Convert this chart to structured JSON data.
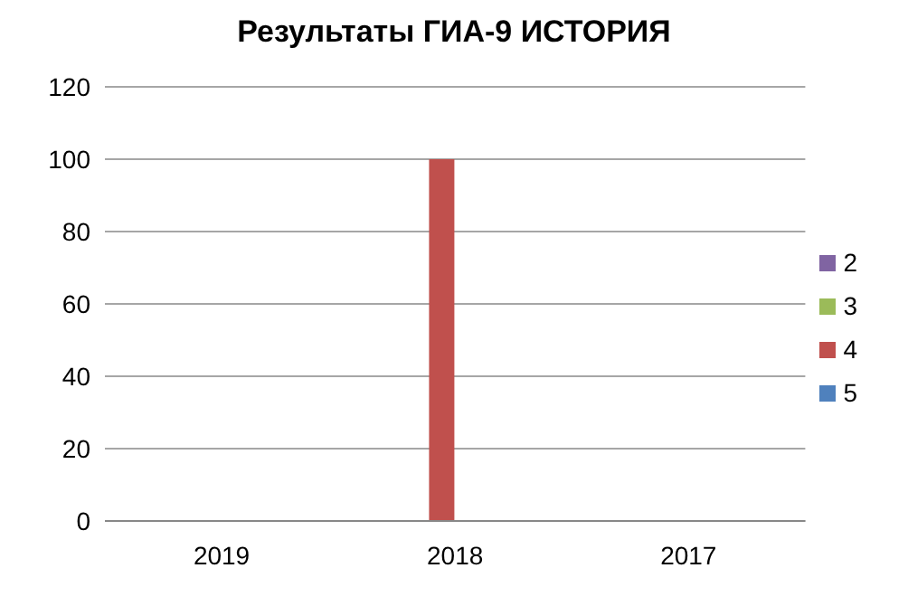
{
  "chart_data": {
    "type": "bar",
    "title": "Результаты ГИА-9  ИСТОРИЯ",
    "categories": [
      "2019",
      "2018",
      "2017"
    ],
    "series": [
      {
        "name": "5",
        "color": "#4f81bd",
        "values": [
          0,
          0,
          0
        ]
      },
      {
        "name": "4",
        "color": "#c0504d",
        "values": [
          0,
          100,
          0
        ]
      },
      {
        "name": "3",
        "color": "#9bbb59",
        "values": [
          0,
          0,
          0
        ]
      },
      {
        "name": "2",
        "color": "#8064a2",
        "values": [
          0,
          0,
          0
        ]
      }
    ],
    "ylim": [
      0,
      120
    ],
    "yticks": [
      0,
      20,
      40,
      60,
      80,
      100,
      120
    ],
    "grid": "y",
    "legend": "right"
  }
}
